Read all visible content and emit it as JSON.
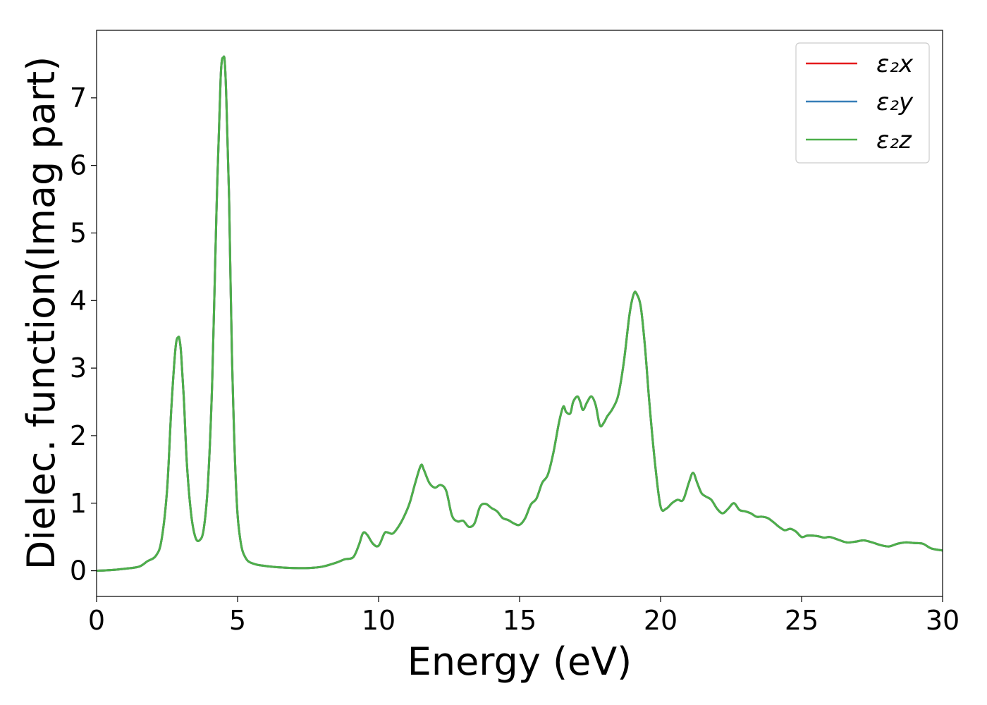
{
  "chart_data": {
    "type": "line",
    "title": "",
    "xlabel": "Energy (eV)",
    "ylabel": "Dielec. function(Imag part)",
    "xlim": [
      0,
      30
    ],
    "ylim": [
      -0.38,
      8.0
    ],
    "xticks": [
      0,
      5,
      10,
      15,
      20,
      25,
      30
    ],
    "xtick_labels": [
      "0",
      "5",
      "10",
      "15",
      "20",
      "25",
      "30"
    ],
    "yticks": [
      0,
      1,
      2,
      3,
      4,
      5,
      6,
      7
    ],
    "ytick_labels": [
      "0",
      "1",
      "2",
      "3",
      "4",
      "5",
      "6",
      "7"
    ],
    "grid": false,
    "legend_position": "top-right",
    "x": [
      0,
      0.5,
      1.0,
      1.5,
      1.8,
      2.1,
      2.3,
      2.5,
      2.65,
      2.8,
      2.9,
      2.95,
      3.0,
      3.1,
      3.2,
      3.35,
      3.5,
      3.65,
      3.8,
      3.95,
      4.1,
      4.25,
      4.4,
      4.5,
      4.55,
      4.6,
      4.7,
      4.8,
      4.95,
      5.1,
      5.3,
      5.6,
      6.0,
      6.5,
      7.0,
      7.5,
      8.0,
      8.5,
      8.8,
      9.1,
      9.3,
      9.45,
      9.6,
      9.8,
      10.0,
      10.2,
      10.3,
      10.5,
      10.7,
      10.9,
      11.1,
      11.3,
      11.5,
      11.6,
      11.8,
      12.0,
      12.2,
      12.4,
      12.6,
      12.8,
      13.0,
      13.2,
      13.4,
      13.6,
      13.8,
      14.0,
      14.2,
      14.4,
      14.6,
      14.8,
      15.0,
      15.2,
      15.4,
      15.6,
      15.8,
      16.0,
      16.2,
      16.4,
      16.55,
      16.65,
      16.8,
      16.9,
      17.05,
      17.15,
      17.25,
      17.4,
      17.55,
      17.7,
      17.85,
      18.0,
      18.1,
      18.3,
      18.5,
      18.7,
      18.9,
      19.05,
      19.15,
      19.3,
      19.45,
      19.6,
      19.8,
      20.0,
      20.2,
      20.4,
      20.6,
      20.8,
      21.0,
      21.15,
      21.3,
      21.45,
      21.6,
      21.8,
      22.0,
      22.2,
      22.4,
      22.6,
      22.8,
      23.0,
      23.2,
      23.4,
      23.6,
      23.8,
      24.0,
      24.2,
      24.4,
      24.6,
      24.8,
      25.0,
      25.2,
      25.4,
      25.6,
      25.8,
      26.0,
      26.3,
      26.6,
      26.9,
      27.2,
      27.5,
      27.8,
      28.1,
      28.4,
      28.7,
      29.0,
      29.3,
      29.6,
      30.0
    ],
    "series": [
      {
        "name": "ε₂x",
        "color": "#e41a1c"
      },
      {
        "name": "ε₂y",
        "color": "#377eb8"
      },
      {
        "name": "ε₂z",
        "color": "#4daf4a"
      }
    ],
    "y": [
      0.0,
      0.01,
      0.03,
      0.06,
      0.14,
      0.22,
      0.45,
      1.2,
      2.4,
      3.3,
      3.46,
      3.4,
      3.2,
      2.5,
      1.6,
      0.85,
      0.5,
      0.45,
      0.62,
      1.3,
      2.8,
      5.3,
      7.3,
      7.6,
      7.5,
      7.0,
      5.5,
      3.2,
      1.2,
      0.45,
      0.18,
      0.1,
      0.07,
      0.05,
      0.04,
      0.04,
      0.06,
      0.12,
      0.17,
      0.2,
      0.38,
      0.56,
      0.53,
      0.4,
      0.37,
      0.55,
      0.57,
      0.55,
      0.65,
      0.8,
      1.0,
      1.3,
      1.56,
      1.5,
      1.3,
      1.23,
      1.27,
      1.18,
      0.82,
      0.73,
      0.74,
      0.65,
      0.7,
      0.95,
      0.99,
      0.93,
      0.88,
      0.78,
      0.75,
      0.7,
      0.68,
      0.78,
      0.98,
      1.07,
      1.3,
      1.42,
      1.75,
      2.2,
      2.43,
      2.35,
      2.33,
      2.5,
      2.58,
      2.5,
      2.38,
      2.5,
      2.58,
      2.45,
      2.15,
      2.2,
      2.28,
      2.4,
      2.6,
      3.1,
      3.8,
      4.1,
      4.1,
      3.9,
      3.3,
      2.5,
      1.6,
      0.95,
      0.92,
      1.0,
      1.05,
      1.05,
      1.3,
      1.45,
      1.3,
      1.15,
      1.1,
      1.05,
      0.92,
      0.85,
      0.92,
      1.0,
      0.9,
      0.88,
      0.85,
      0.8,
      0.8,
      0.78,
      0.72,
      0.65,
      0.6,
      0.62,
      0.58,
      0.5,
      0.52,
      0.52,
      0.51,
      0.49,
      0.5,
      0.46,
      0.42,
      0.43,
      0.45,
      0.42,
      0.38,
      0.36,
      0.4,
      0.42,
      0.41,
      0.4,
      0.33,
      0.3
    ]
  }
}
